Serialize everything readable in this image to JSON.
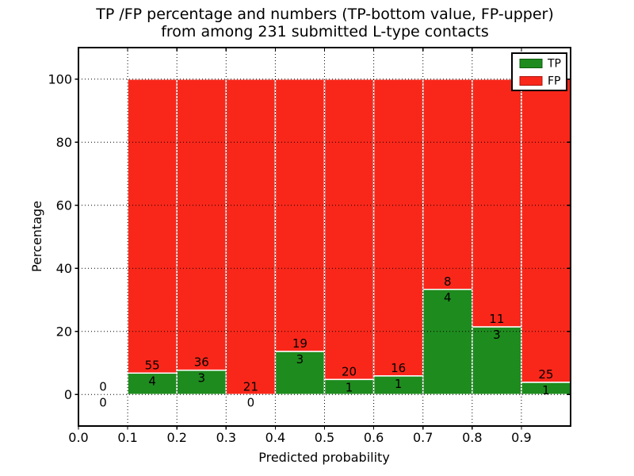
{
  "figure": {
    "title_line1": "TP /FP percentage and numbers (TP-bottom value, FP-upper)",
    "title_line2": "from among 231 submitted L-type contacts"
  },
  "chart_data": {
    "type": "bar",
    "stacked": true,
    "title": "TP /FP percentage and numbers (TP-bottom value, FP-upper) from among 231 submitted L-type contacts",
    "xlabel": "Predicted probability",
    "ylabel": "Percentage",
    "xlim": [
      0.0,
      1.0
    ],
    "ylim": [
      -10,
      110
    ],
    "xticks": [
      "0.0",
      "0.1",
      "0.2",
      "0.3",
      "0.4",
      "0.5",
      "0.6",
      "0.7",
      "0.8",
      "0.9"
    ],
    "yticks": [
      "0",
      "20",
      "40",
      "60",
      "80",
      "100"
    ],
    "ytick_values": [
      0,
      20,
      40,
      60,
      80,
      100
    ],
    "grid": "dotted",
    "total_submitted": 231,
    "annotation_rule": "FP count printed above TP segment top, TP count printed below it",
    "legend": {
      "position": "upper-right",
      "entries": [
        {
          "label": "TP",
          "color": "#1e8b1e",
          "edge": "#0d5c0d"
        },
        {
          "label": "FP",
          "color": "#f9271a",
          "edge": "#ac130b"
        }
      ]
    },
    "series": [
      {
        "name": "TP",
        "color": "#1e8b1e",
        "counts": [
          0,
          4,
          3,
          0,
          3,
          1,
          1,
          4,
          3,
          1
        ]
      },
      {
        "name": "FP",
        "color": "#f9271a",
        "counts": [
          0,
          55,
          36,
          21,
          19,
          20,
          16,
          8,
          11,
          25
        ]
      }
    ],
    "bins": [
      {
        "x0": 0.0,
        "x1": 0.1,
        "tp": 0,
        "fp": 0,
        "tp_pct": 0,
        "fp_pct": 0
      },
      {
        "x0": 0.1,
        "x1": 0.2,
        "tp": 4,
        "fp": 55,
        "tp_pct": 6.78,
        "fp_pct": 93.22
      },
      {
        "x0": 0.2,
        "x1": 0.3,
        "tp": 3,
        "fp": 36,
        "tp_pct": 7.69,
        "fp_pct": 92.31
      },
      {
        "x0": 0.3,
        "x1": 0.4,
        "tp": 0,
        "fp": 21,
        "tp_pct": 0,
        "fp_pct": 100
      },
      {
        "x0": 0.4,
        "x1": 0.5,
        "tp": 3,
        "fp": 19,
        "tp_pct": 13.64,
        "fp_pct": 86.36
      },
      {
        "x0": 0.5,
        "x1": 0.6,
        "tp": 1,
        "fp": 20,
        "tp_pct": 4.76,
        "fp_pct": 95.24
      },
      {
        "x0": 0.6,
        "x1": 0.7,
        "tp": 1,
        "fp": 16,
        "tp_pct": 5.88,
        "fp_pct": 94.12
      },
      {
        "x0": 0.7,
        "x1": 0.8,
        "tp": 4,
        "fp": 8,
        "tp_pct": 33.33,
        "fp_pct": 66.67
      },
      {
        "x0": 0.8,
        "x1": 0.9,
        "tp": 3,
        "fp": 11,
        "tp_pct": 21.43,
        "fp_pct": 78.57
      },
      {
        "x0": 0.9,
        "x1": 1.0,
        "tp": 1,
        "fp": 25,
        "tp_pct": 3.85,
        "fp_pct": 96.15
      }
    ],
    "colors": {
      "tp": "#1e8b1e",
      "fp": "#f9271a",
      "bar_edge": "#ffffff",
      "grid": "#000000",
      "background": "#ffffff"
    }
  }
}
